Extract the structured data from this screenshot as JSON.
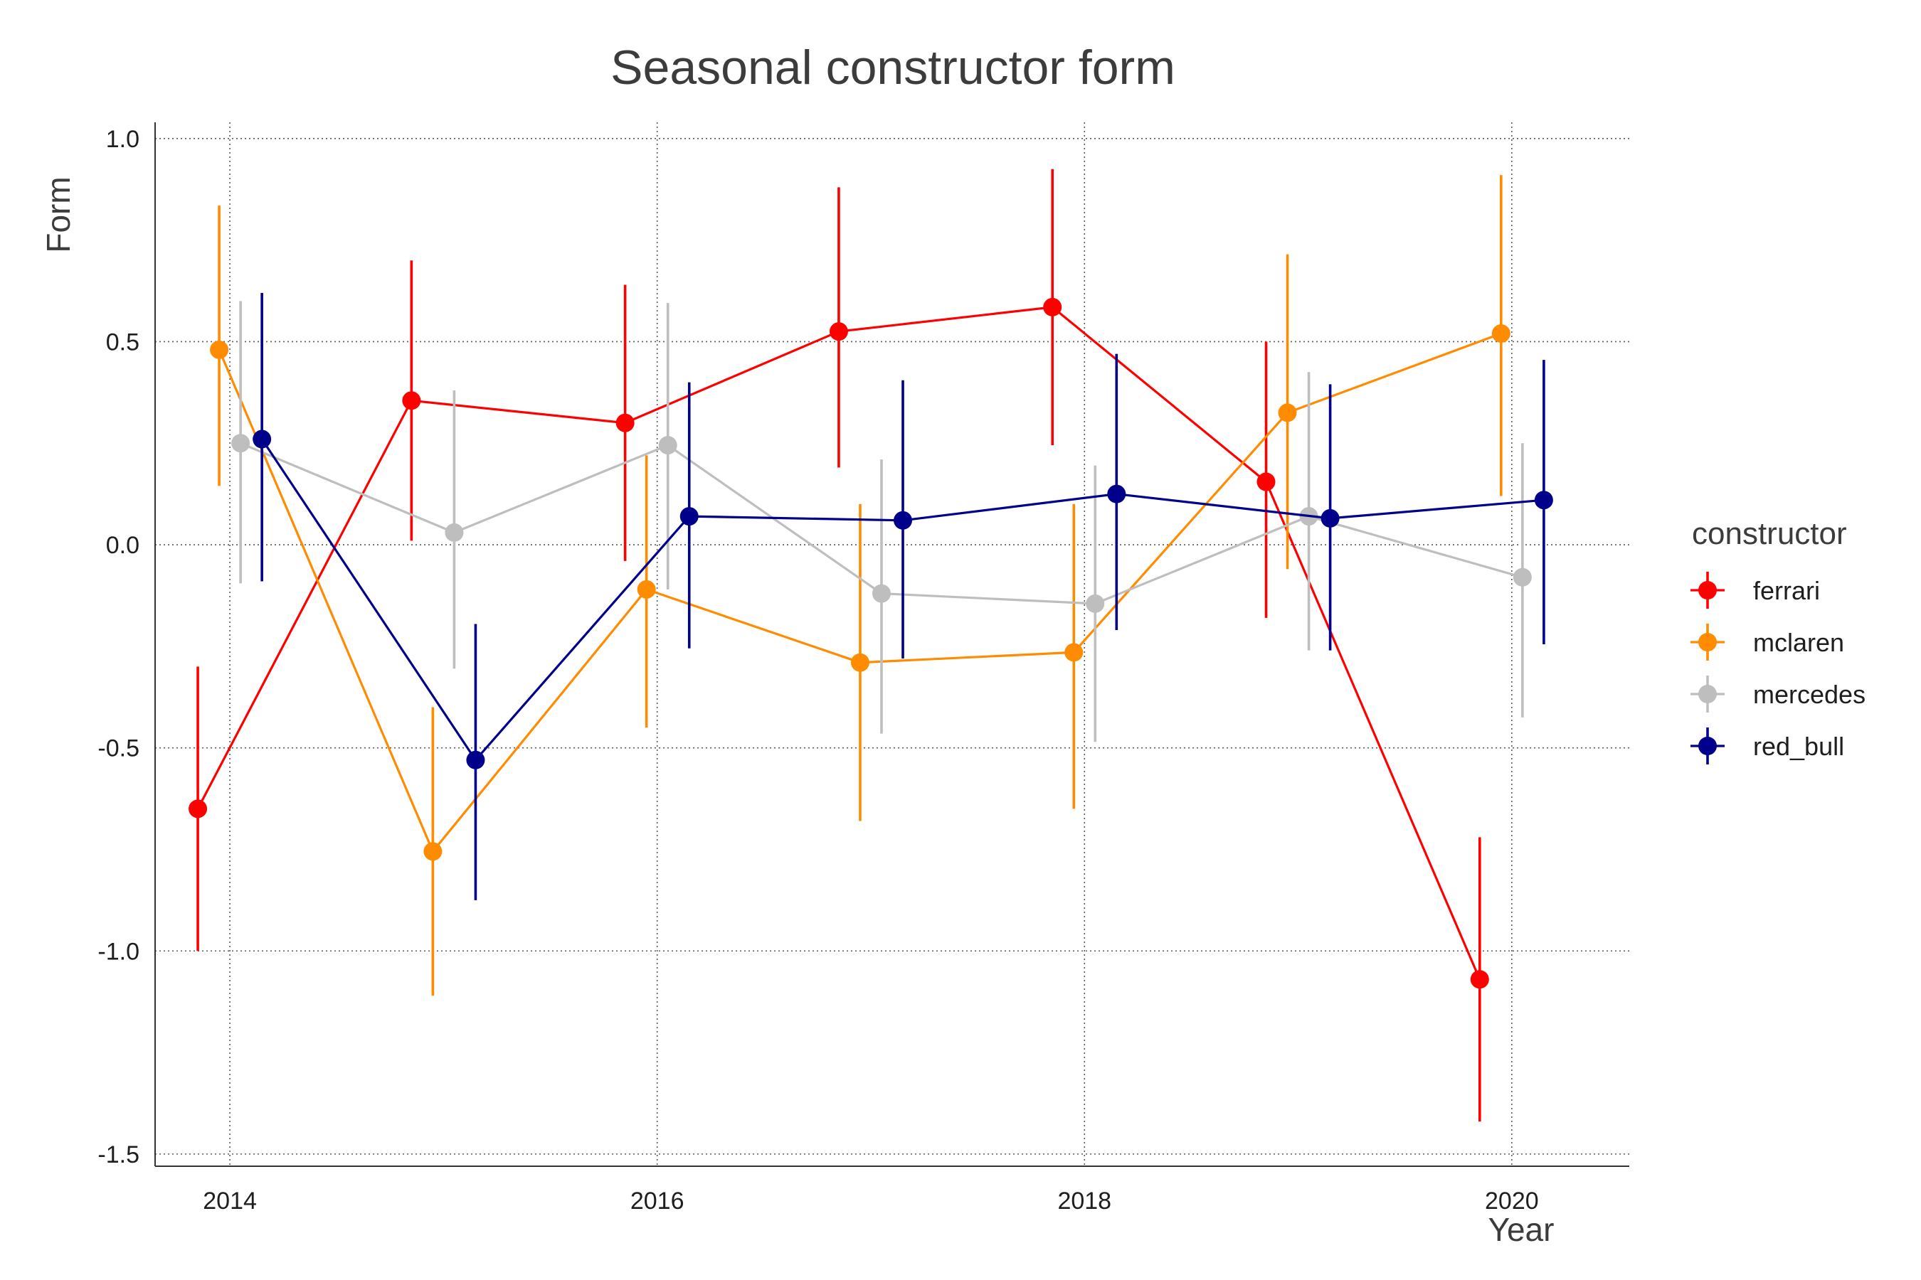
{
  "chart_data": {
    "type": "line",
    "title": "Seasonal constructor form",
    "xlabel": "Year",
    "ylabel": "Form",
    "xlim": [
      2013.65,
      2020.55
    ],
    "ylim": [
      -1.53,
      1.04
    ],
    "x_ticks": [
      2014,
      2016,
      2018,
      2020
    ],
    "x_tick_labels": [
      "2014",
      "2016",
      "2018",
      "2020"
    ],
    "y_ticks": [
      -1.5,
      -1.0,
      -0.5,
      0.0,
      0.5,
      1.0
    ],
    "y_tick_labels": [
      "-1.5",
      "-1.0",
      "-0.5",
      "0.0",
      "0.5",
      "1.0"
    ],
    "grid": true,
    "legend": {
      "title": "constructor",
      "position": "right"
    },
    "x": [
      2014,
      2015,
      2016,
      2017,
      2018,
      2019,
      2020
    ],
    "series": [
      {
        "name": "ferrari",
        "color": "#ff0000",
        "values": [
          -0.65,
          0.355,
          0.3,
          0.525,
          0.585,
          0.155,
          -1.07
        ],
        "lower": [
          -1.0,
          0.01,
          -0.04,
          0.19,
          0.245,
          -0.18,
          -1.42
        ],
        "upper": [
          -0.3,
          0.7,
          0.64,
          0.88,
          0.925,
          0.5,
          -0.72
        ]
      },
      {
        "name": "mclaren",
        "color": "#ff8c00",
        "values": [
          0.48,
          -0.755,
          -0.11,
          -0.29,
          -0.265,
          0.325,
          0.52
        ],
        "lower": [
          0.145,
          -1.11,
          -0.45,
          -0.68,
          -0.65,
          -0.06,
          0.12
        ],
        "upper": [
          0.835,
          -0.4,
          0.22,
          0.1,
          0.1,
          0.715,
          0.91
        ]
      },
      {
        "name": "mercedes",
        "color": "#bebebe",
        "values": [
          0.25,
          0.03,
          0.245,
          -0.12,
          -0.145,
          0.07,
          -0.08
        ],
        "lower": [
          -0.095,
          -0.305,
          -0.11,
          -0.465,
          -0.485,
          -0.26,
          -0.425
        ],
        "upper": [
          0.6,
          0.38,
          0.595,
          0.21,
          0.195,
          0.425,
          0.25
        ]
      },
      {
        "name": "red_bull",
        "color": "#00008b",
        "values": [
          0.26,
          -0.53,
          0.07,
          0.06,
          0.125,
          0.065,
          0.11
        ],
        "lower": [
          -0.09,
          -0.875,
          -0.255,
          -0.28,
          -0.21,
          -0.26,
          -0.245
        ],
        "upper": [
          0.62,
          -0.195,
          0.4,
          0.405,
          0.47,
          0.395,
          0.455
        ]
      }
    ]
  }
}
